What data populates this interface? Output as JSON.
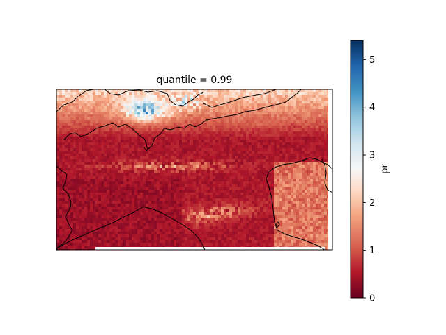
{
  "chart_data": {
    "type": "heatmap",
    "title": "quantile = 0.99",
    "xlabel": "",
    "ylabel": "",
    "colorbar": {
      "label": "pr",
      "cmap": "RdBu",
      "range": [
        0,
        5.4
      ],
      "ticks": [
        0,
        1,
        2,
        3,
        4,
        5
      ],
      "tick_labels": [
        "0",
        "1",
        "2",
        "3",
        "4",
        "5"
      ]
    },
    "grid": false,
    "legend": "none",
    "map_features": [
      "coastlines",
      "country borders"
    ],
    "field_summary": {
      "dominant_value": 0.5,
      "south_lowlands": 0.2,
      "alpine_north_peak": 4.5,
      "northern_band": 2.2,
      "eastern_coast": 1.3
    }
  },
  "colors": {
    "low": "#67001f",
    "mid": "#f7f7f7",
    "high": "#053061",
    "frame": "#000000",
    "boundary": "#000000"
  }
}
